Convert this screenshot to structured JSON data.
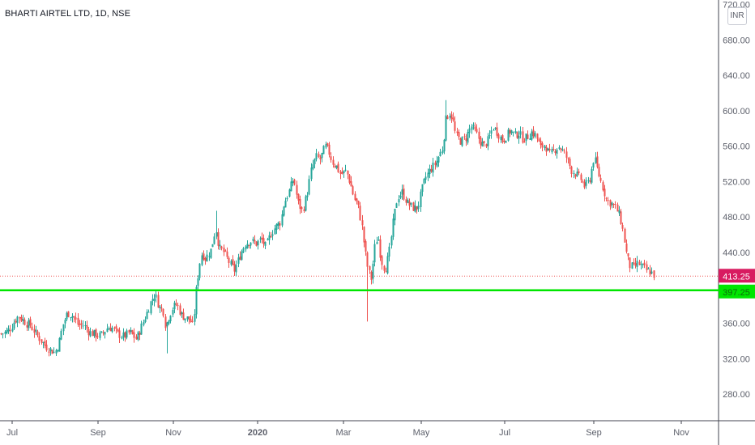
{
  "chart_data": {
    "type": "candlestick",
    "title": "BHARTI AIRTEL LTD, 1D, NSE",
    "currency": "INR",
    "ylim": [
      250,
      725
    ],
    "y_ticks": [
      "720.00",
      "680.00",
      "640.00",
      "600.00",
      "560.00",
      "520.00",
      "480.00",
      "440.00",
      "400.00",
      "360.00",
      "320.00",
      "280.00"
    ],
    "x_ticks": [
      "Jul",
      "Sep",
      "Nov",
      "2020",
      "Mar",
      "May",
      "Jul",
      "Sep",
      "Nov"
    ],
    "last_price": 413.25,
    "last_price_label": "413.25",
    "support_level": 397.25,
    "support_label": "397.25",
    "grid": false,
    "colors": {
      "up": "#26a69a",
      "down": "#ef5350",
      "support": "#00e600",
      "last_price": "#d81b60",
      "axis_text": "#5d606b"
    },
    "price_path": [
      [
        0,
        348
      ],
      [
        7,
        350
      ],
      [
        13,
        355
      ],
      [
        17,
        362
      ],
      [
        22,
        368
      ],
      [
        28,
        364
      ],
      [
        32,
        360
      ],
      [
        37,
        358
      ],
      [
        44,
        348
      ],
      [
        50,
        341
      ],
      [
        56,
        334
      ],
      [
        62,
        330
      ],
      [
        67,
        327
      ],
      [
        72,
        336
      ],
      [
        77,
        358
      ],
      [
        83,
        372
      ],
      [
        90,
        368
      ],
      [
        96,
        358
      ],
      [
        103,
        358
      ],
      [
        110,
        350
      ],
      [
        118,
        347
      ],
      [
        124,
        346
      ],
      [
        132,
        355
      ],
      [
        138,
        355
      ],
      [
        145,
        348
      ],
      [
        153,
        345
      ],
      [
        160,
        350
      ],
      [
        168,
        342
      ],
      [
        174,
        356
      ],
      [
        181,
        372
      ],
      [
        186,
        385
      ],
      [
        191,
        393
      ],
      [
        196,
        378
      ],
      [
        201,
        375
      ],
      [
        204,
        356
      ],
      [
        209,
        370
      ],
      [
        213,
        378
      ],
      [
        218,
        382
      ],
      [
        223,
        370
      ],
      [
        229,
        366
      ],
      [
        234,
        364
      ],
      [
        238,
        356
      ],
      [
        242,
        400
      ],
      [
        246,
        428
      ],
      [
        249,
        440
      ],
      [
        253,
        433
      ],
      [
        260,
        443
      ],
      [
        266,
        468
      ],
      [
        270,
        445
      ],
      [
        276,
        440
      ],
      [
        283,
        428
      ],
      [
        289,
        420
      ],
      [
        296,
        437
      ],
      [
        302,
        450
      ],
      [
        309,
        453
      ],
      [
        316,
        450
      ],
      [
        322,
        455
      ],
      [
        328,
        446
      ],
      [
        333,
        460
      ],
      [
        339,
        468
      ],
      [
        346,
        475
      ],
      [
        350,
        495
      ],
      [
        356,
        508
      ],
      [
        362,
        524
      ],
      [
        367,
        497
      ],
      [
        373,
        486
      ],
      [
        379,
        508
      ],
      [
        384,
        535
      ],
      [
        390,
        548
      ],
      [
        395,
        545
      ],
      [
        401,
        560
      ],
      [
        405,
        555
      ],
      [
        410,
        542
      ],
      [
        415,
        537
      ],
      [
        420,
        528
      ],
      [
        427,
        532
      ],
      [
        432,
        518
      ],
      [
        437,
        500
      ],
      [
        441,
        495
      ],
      [
        446,
        472
      ],
      [
        450,
        443
      ],
      [
        454,
        420
      ],
      [
        458,
        410
      ],
      [
        462,
        445
      ],
      [
        466,
        460
      ],
      [
        470,
        432
      ],
      [
        475,
        420
      ],
      [
        480,
        440
      ],
      [
        485,
        475
      ],
      [
        490,
        502
      ],
      [
        496,
        508
      ],
      [
        503,
        495
      ],
      [
        510,
        490
      ],
      [
        515,
        490
      ],
      [
        520,
        510
      ],
      [
        525,
        525
      ],
      [
        531,
        534
      ],
      [
        537,
        540
      ],
      [
        541,
        548
      ],
      [
        546,
        558
      ],
      [
        550,
        590
      ],
      [
        554,
        598
      ],
      [
        558,
        592
      ],
      [
        562,
        572
      ],
      [
        568,
        566
      ],
      [
        574,
        568
      ],
      [
        581,
        583
      ],
      [
        587,
        575
      ],
      [
        592,
        566
      ],
      [
        597,
        560
      ],
      [
        603,
        568
      ],
      [
        608,
        582
      ],
      [
        614,
        575
      ],
      [
        620,
        566
      ],
      [
        625,
        572
      ],
      [
        630,
        578
      ],
      [
        635,
        572
      ],
      [
        640,
        575
      ],
      [
        645,
        568
      ],
      [
        650,
        570
      ],
      [
        656,
        576
      ],
      [
        661,
        572
      ],
      [
        667,
        558
      ],
      [
        672,
        562
      ],
      [
        678,
        550
      ],
      [
        683,
        555
      ],
      [
        689,
        560
      ],
      [
        694,
        555
      ],
      [
        700,
        545
      ],
      [
        705,
        533
      ],
      [
        711,
        528
      ],
      [
        717,
        522
      ],
      [
        721,
        515
      ],
      [
        727,
        520
      ],
      [
        733,
        548
      ],
      [
        738,
        530
      ],
      [
        743,
        515
      ],
      [
        749,
        498
      ],
      [
        755,
        495
      ],
      [
        760,
        490
      ],
      [
        765,
        480
      ],
      [
        769,
        462
      ],
      [
        773,
        438
      ],
      [
        777,
        425
      ],
      [
        782,
        423
      ],
      [
        787,
        428
      ],
      [
        792,
        424
      ],
      [
        797,
        420
      ],
      [
        803,
        418
      ],
      [
        808,
        413.25
      ]
    ]
  }
}
